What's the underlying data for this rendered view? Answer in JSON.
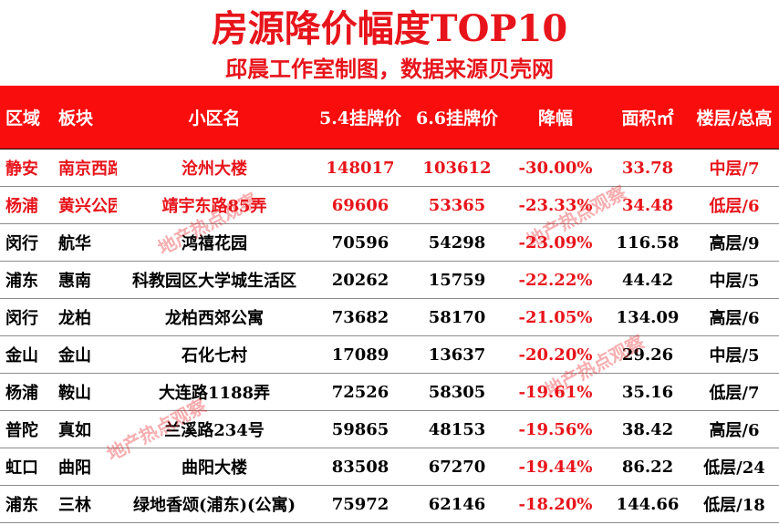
{
  "title": "房源降价幅度TOP10",
  "subtitle": "邱晨工作室制图，数据来源贝壳网",
  "watermark": "地产热点观察",
  "colors": {
    "accent": "#e8141b",
    "header_bg": "#fa0d0d"
  },
  "headers": [
    "区域",
    "板块",
    "小区名",
    "5.4挂牌价",
    "6.6挂牌价",
    "降幅",
    "面积㎡",
    "楼层/总高"
  ],
  "rows": [
    [
      "静安",
      "南京西路",
      "沧州大楼",
      "148017",
      "103612",
      "-30.00%",
      "33.78",
      "中层/7"
    ],
    [
      "杨浦",
      "黄兴公园",
      "靖宇东路85弄",
      "69606",
      "53365",
      "-23.33%",
      "34.48",
      "低层/6"
    ],
    [
      "闵行",
      "航华",
      "鸿禧花园",
      "70596",
      "54298",
      "-23.09%",
      "116.58",
      "高层/9"
    ],
    [
      "浦东",
      "惠南",
      "科教园区大学城生活区",
      "20262",
      "15759",
      "-22.22%",
      "44.42",
      "中层/5"
    ],
    [
      "闵行",
      "龙柏",
      "龙柏西郊公寓",
      "73682",
      "58170",
      "-21.05%",
      "134.09",
      "高层/6"
    ],
    [
      "金山",
      "金山",
      "石化七村",
      "17089",
      "13637",
      "-20.20%",
      "29.26",
      "中层/5"
    ],
    [
      "杨浦",
      "鞍山",
      "大连路1188弄",
      "72526",
      "58305",
      "-19.61%",
      "35.16",
      "低层/7"
    ],
    [
      "普陀",
      "真如",
      "兰溪路234号",
      "59865",
      "48153",
      "-19.56%",
      "38.42",
      "高层/6"
    ],
    [
      "虹口",
      "曲阳",
      "曲阳大楼",
      "83508",
      "67270",
      "-19.44%",
      "86.22",
      "低层/24"
    ],
    [
      "浦东",
      "三林",
      "绿地香颂(浦东)(公寓)",
      "75972",
      "62146",
      "-18.20%",
      "144.66",
      "低层/18"
    ]
  ],
  "highlight_rows": [
    0,
    1
  ]
}
